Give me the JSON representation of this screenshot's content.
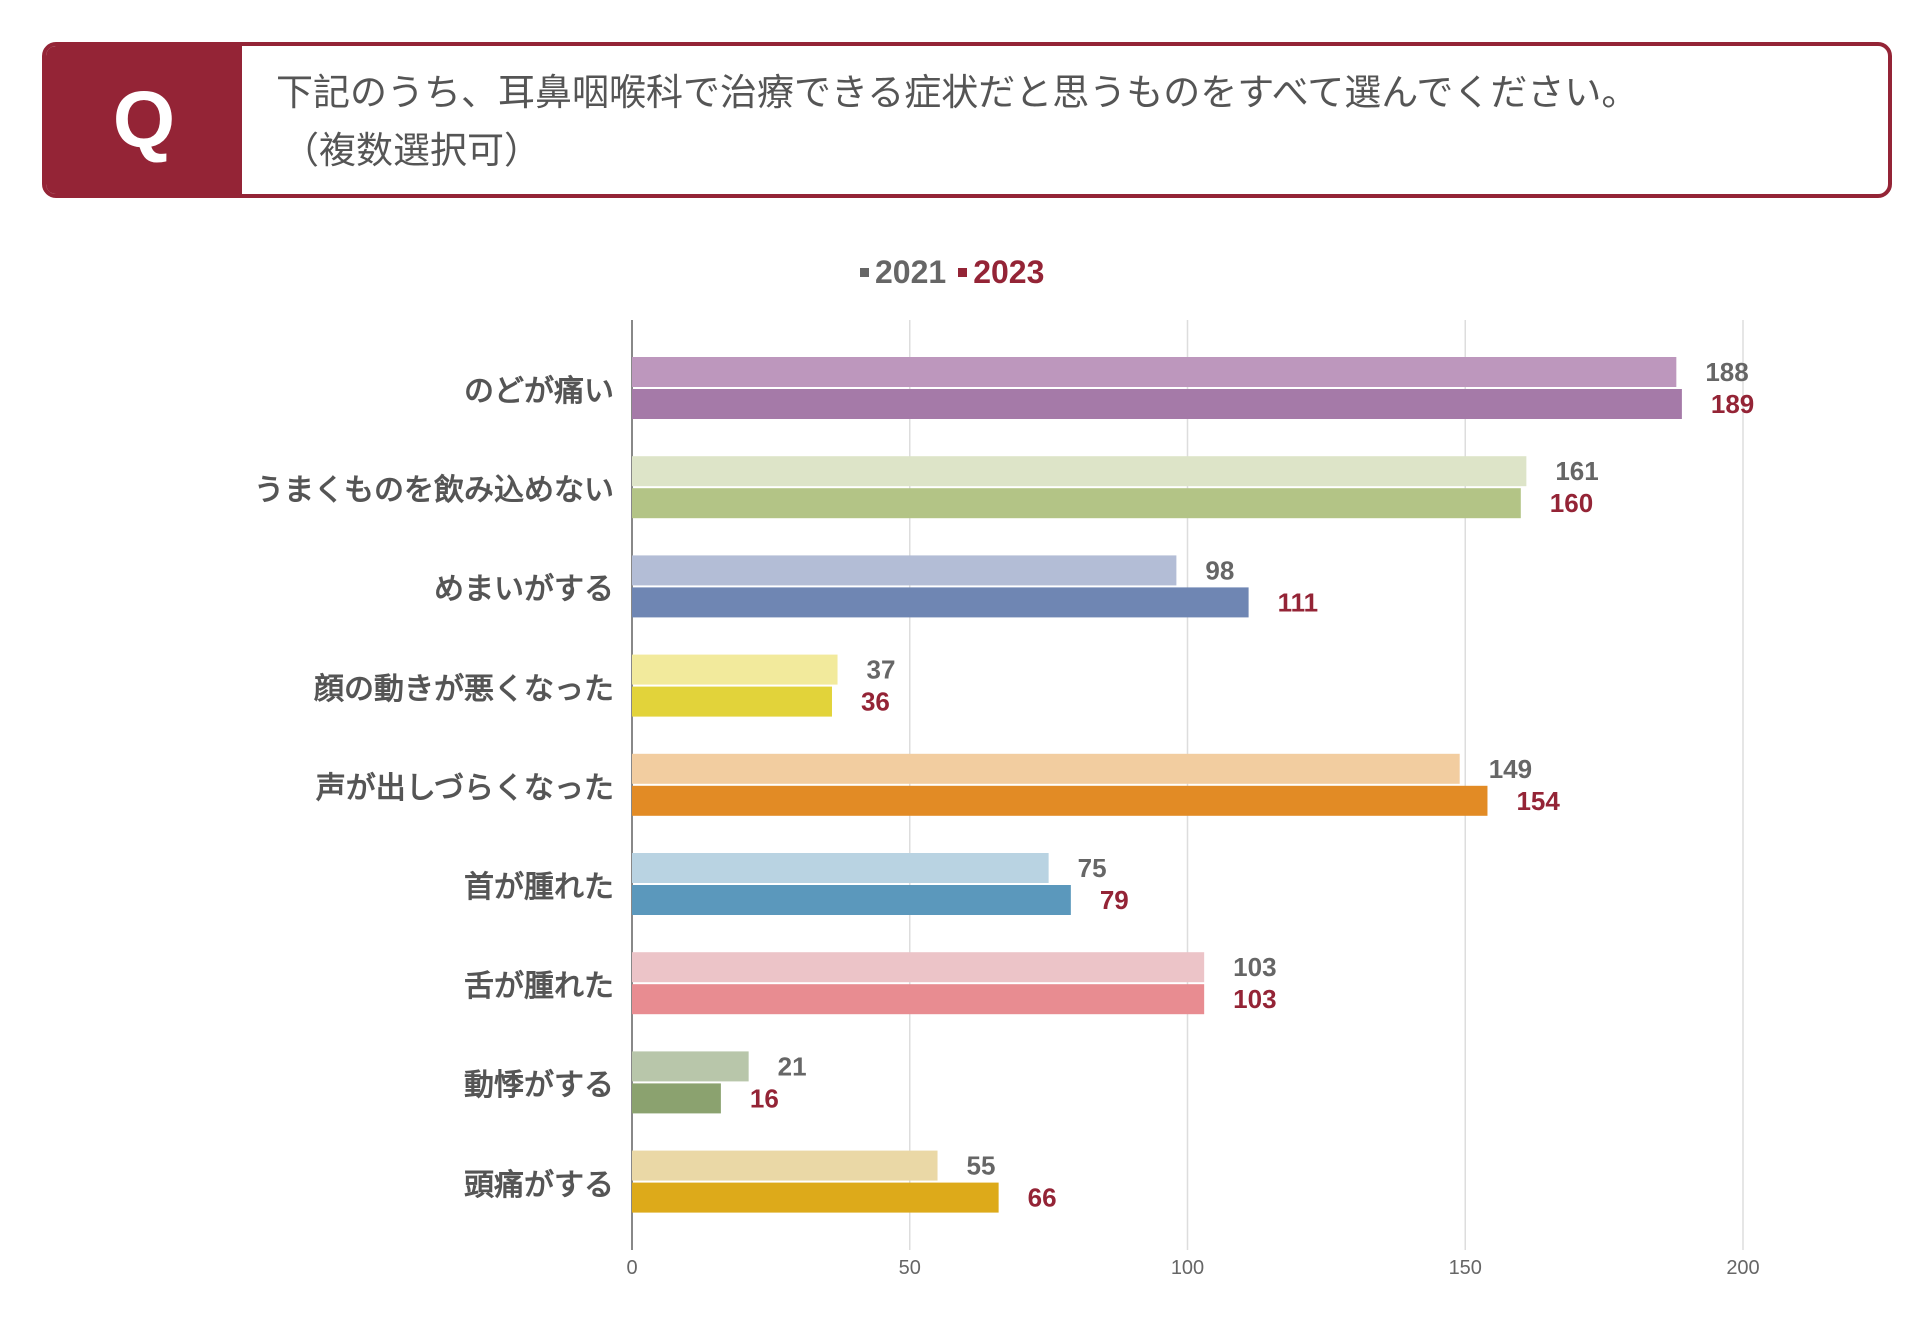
{
  "question": {
    "badge": "Q",
    "line1": "下記のうち、耳鼻咽喉科で治療できる症状だと思うものをすべて選んでください。",
    "line2": "（複数選択可）"
  },
  "colors": {
    "accent": "#942436",
    "series2021_text": "#666666",
    "series2023_text": "#942436",
    "gridline": "#dddddd",
    "axis": "#888888"
  },
  "chart_data": {
    "type": "bar",
    "orientation": "horizontal",
    "title": "",
    "legend_position": "top-center",
    "categories": [
      "のどが痛い",
      "うまくものを飲み込めない",
      "めまいがする",
      "顔の動きが悪くなった",
      "声が出しづらくなった",
      "首が腫れた",
      "舌が腫れた",
      "動悸がする",
      "頭痛がする"
    ],
    "series": [
      {
        "name": "2021",
        "values": [
          188,
          161,
          98,
          37,
          149,
          75,
          103,
          21,
          55
        ],
        "colors": [
          "#bd97bd",
          "#dde4c8",
          "#b3bdd6",
          "#f2ea9c",
          "#f2cda0",
          "#b9d3e2",
          "#ecc4c8",
          "#b8c6aa",
          "#ead8a6"
        ]
      },
      {
        "name": "2023",
        "values": [
          189,
          160,
          111,
          36,
          154,
          79,
          103,
          16,
          66
        ],
        "colors": [
          "#a57aa8",
          "#b3c486",
          "#6f86b3",
          "#e2d33a",
          "#e28b25",
          "#5b98bc",
          "#e88c91",
          "#8ba26f",
          "#ddaa1a"
        ]
      }
    ],
    "xlim": [
      0,
      200
    ],
    "xticks": [
      0,
      50,
      100,
      150,
      200
    ],
    "grid": true
  }
}
